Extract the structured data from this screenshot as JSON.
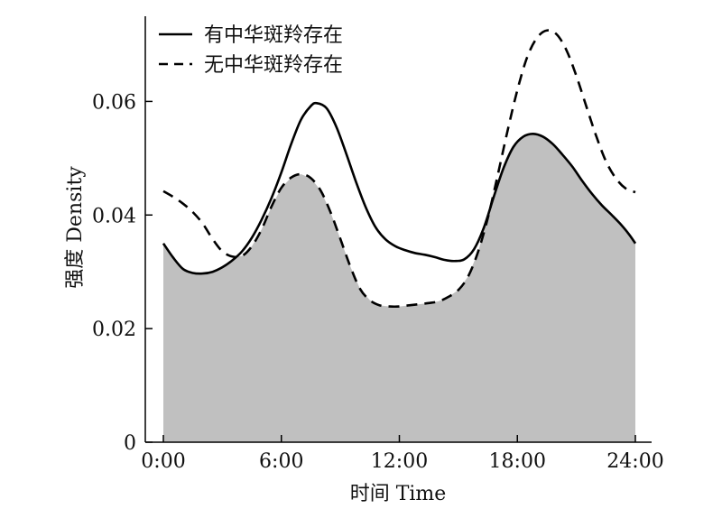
{
  "chart_data": {
    "type": "area",
    "xlabel": "时间 Time",
    "ylabel": "强度 Density",
    "xlim": [
      0,
      24
    ],
    "ylim": [
      0,
      0.075
    ],
    "x_ticks": [
      {
        "value": 0,
        "label": "0:00"
      },
      {
        "value": 6,
        "label": "6:00"
      },
      {
        "value": 12,
        "label": "12:00"
      },
      {
        "value": 18,
        "label": "18:00"
      },
      {
        "value": 24,
        "label": "24:00"
      }
    ],
    "y_ticks": [
      {
        "value": 0,
        "label": "0"
      },
      {
        "value": 0.02,
        "label": "0.02"
      },
      {
        "value": 0.04,
        "label": "0.04"
      },
      {
        "value": 0.06,
        "label": "0.06"
      }
    ],
    "grid": false,
    "legend_position": "top-left",
    "overlap_fill_color": "#c0c0c0",
    "series": [
      {
        "name": "有中华斑羚存在",
        "style": "solid",
        "color": "#000000",
        "points": [
          [
            0,
            0.035
          ],
          [
            0.5,
            0.0325
          ],
          [
            1,
            0.0305
          ],
          [
            1.5,
            0.0298
          ],
          [
            2,
            0.0297
          ],
          [
            2.5,
            0.03
          ],
          [
            3,
            0.0308
          ],
          [
            3.5,
            0.032
          ],
          [
            4,
            0.0336
          ],
          [
            4.5,
            0.036
          ],
          [
            5,
            0.0392
          ],
          [
            5.5,
            0.043
          ],
          [
            6,
            0.0475
          ],
          [
            6.5,
            0.0525
          ],
          [
            7,
            0.0568
          ],
          [
            7.5,
            0.0592
          ],
          [
            7.8,
            0.0597
          ],
          [
            8.3,
            0.0588
          ],
          [
            8.8,
            0.0555
          ],
          [
            9.3,
            0.0508
          ],
          [
            9.8,
            0.0458
          ],
          [
            10.3,
            0.0413
          ],
          [
            10.8,
            0.0378
          ],
          [
            11.3,
            0.0357
          ],
          [
            11.8,
            0.0345
          ],
          [
            12.3,
            0.0338
          ],
          [
            12.8,
            0.0333
          ],
          [
            13.3,
            0.033
          ],
          [
            13.8,
            0.0326
          ],
          [
            14.3,
            0.0321
          ],
          [
            14.8,
            0.0319
          ],
          [
            15.3,
            0.0322
          ],
          [
            15.8,
            0.034
          ],
          [
            16.3,
            0.0378
          ],
          [
            16.8,
            0.0432
          ],
          [
            17.3,
            0.0483
          ],
          [
            17.8,
            0.052
          ],
          [
            18.3,
            0.0538
          ],
          [
            18.8,
            0.0543
          ],
          [
            19.3,
            0.0538
          ],
          [
            19.8,
            0.0525
          ],
          [
            20.3,
            0.0506
          ],
          [
            20.8,
            0.0485
          ],
          [
            21.3,
            0.046
          ],
          [
            21.8,
            0.0437
          ],
          [
            22.3,
            0.0417
          ],
          [
            22.8,
            0.04
          ],
          [
            23.3,
            0.0382
          ],
          [
            23.7,
            0.0365
          ],
          [
            24,
            0.035
          ]
        ]
      },
      {
        "name": "无中华斑羚存在",
        "style": "dashed",
        "color": "#000000",
        "points": [
          [
            0,
            0.0442
          ],
          [
            0.5,
            0.0432
          ],
          [
            1,
            0.042
          ],
          [
            1.5,
            0.0405
          ],
          [
            2,
            0.0385
          ],
          [
            2.5,
            0.0358
          ],
          [
            3,
            0.0336
          ],
          [
            3.5,
            0.0327
          ],
          [
            4,
            0.0328
          ],
          [
            4.5,
            0.0345
          ],
          [
            5,
            0.0375
          ],
          [
            5.5,
            0.0415
          ],
          [
            6,
            0.0448
          ],
          [
            6.5,
            0.0466
          ],
          [
            7,
            0.0472
          ],
          [
            7.5,
            0.0465
          ],
          [
            8,
            0.0443
          ],
          [
            8.5,
            0.0405
          ],
          [
            9,
            0.0358
          ],
          [
            9.5,
            0.031
          ],
          [
            10,
            0.027
          ],
          [
            10.5,
            0.025
          ],
          [
            11,
            0.0241
          ],
          [
            11.5,
            0.0239
          ],
          [
            12,
            0.0239
          ],
          [
            12.5,
            0.0241
          ],
          [
            13,
            0.0243
          ],
          [
            13.5,
            0.0245
          ],
          [
            14,
            0.0248
          ],
          [
            14.5,
            0.0256
          ],
          [
            15,
            0.0268
          ],
          [
            15.5,
            0.0292
          ],
          [
            16,
            0.0335
          ],
          [
            16.5,
            0.0395
          ],
          [
            17,
            0.047
          ],
          [
            17.5,
            0.0548
          ],
          [
            18,
            0.062
          ],
          [
            18.5,
            0.0678
          ],
          [
            19,
            0.0712
          ],
          [
            19.5,
            0.0725
          ],
          [
            20,
            0.0718
          ],
          [
            20.5,
            0.069
          ],
          [
            21,
            0.0645
          ],
          [
            21.5,
            0.0592
          ],
          [
            22,
            0.054
          ],
          [
            22.5,
            0.0495
          ],
          [
            23,
            0.0465
          ],
          [
            23.5,
            0.0447
          ],
          [
            24,
            0.044
          ]
        ]
      }
    ]
  }
}
